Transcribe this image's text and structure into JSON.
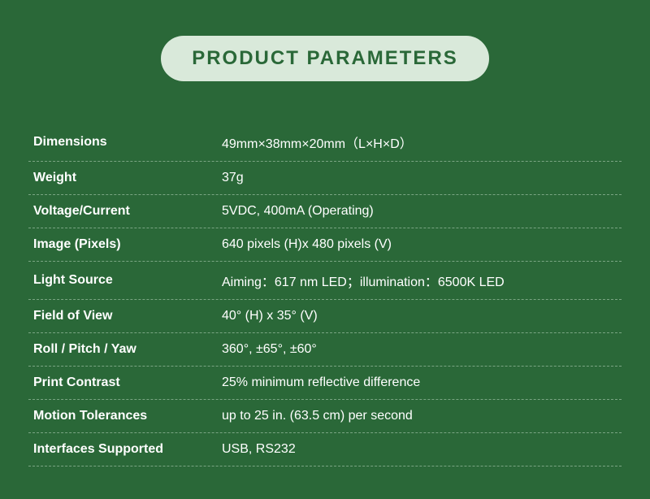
{
  "title": "PRODUCT PARAMETERS",
  "style": {
    "background_color": "#2a6838",
    "pill_background": "#d9e9da",
    "pill_text_color": "#2a6838",
    "pill_fontsize": 24,
    "pill_fontweight": 700,
    "pill_letter_spacing": 2,
    "pill_radius": 32,
    "row_text_color": "#ffffff",
    "row_fontsize": 16,
    "label_fontweight": 700,
    "value_fontweight": 400,
    "divider_color": "#7aa583",
    "divider_style": "dashed",
    "label_col_width": 232
  },
  "rows": [
    {
      "label": "Dimensions",
      "value": "49mm×38mm×20mm（L×H×D）"
    },
    {
      "label": "Weight",
      "value": "37g"
    },
    {
      "label": "Voltage/Current",
      "value": "5VDC, 400mA (Operating)"
    },
    {
      "label": "Image (Pixels)",
      "value": "640 pixels (H)x 480 pixels (V)"
    },
    {
      "label": "Light Source",
      "value": "Aiming：617 nm LED；illumination：6500K LED"
    },
    {
      "label": "Field of View",
      "value": "40° (H) x 35° (V)"
    },
    {
      "label": "Roll / Pitch / Yaw",
      "value": "360°, ±65°, ±60°"
    },
    {
      "label": "Print Contrast",
      "value": "25% minimum reflective difference"
    },
    {
      "label": "Motion Tolerances",
      "value": "up to  25 in. (63.5 cm) per second"
    },
    {
      "label": "Interfaces Supported",
      "value": "USB, RS232"
    }
  ]
}
